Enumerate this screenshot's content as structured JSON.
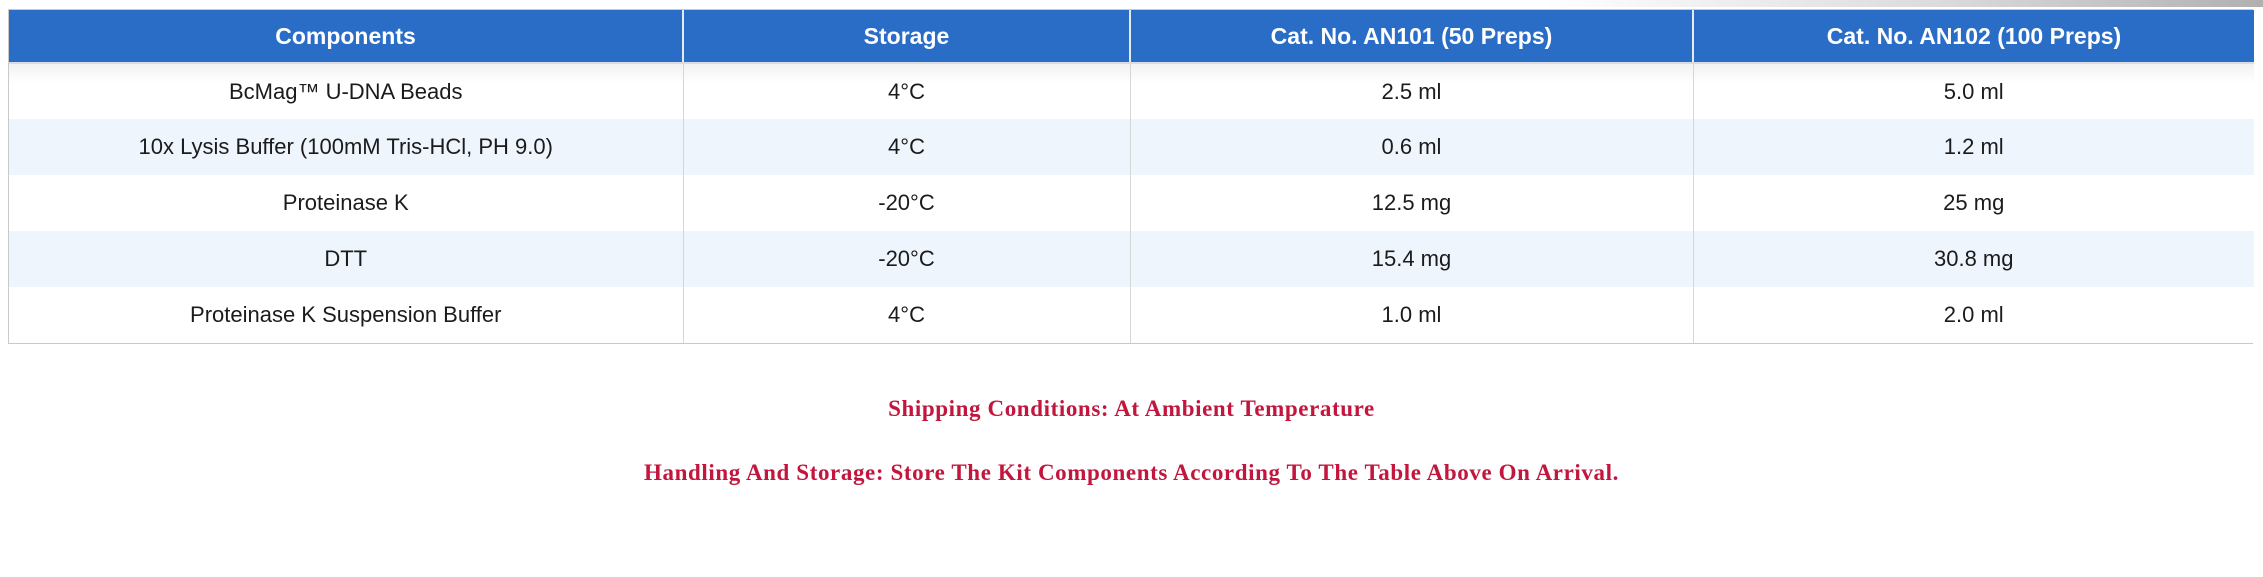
{
  "table": {
    "headers": [
      "Components",
      "Storage",
      "Cat. No. AN101 (50 Preps)",
      "Cat. No. AN102 (100 Preps)"
    ],
    "rows": [
      [
        "BcMag™ U-DNA Beads",
        "4°C",
        "2.5 ml",
        "5.0 ml"
      ],
      [
        "10x Lysis Buffer (100mM Tris-HCl, PH 9.0)",
        "4°C",
        "0.6 ml",
        "1.2 ml"
      ],
      [
        "Proteinase K",
        "-20°C",
        "12.5 mg",
        "25 mg"
      ],
      [
        "DTT",
        "-20°C",
        "15.4 mg",
        "30.8 mg"
      ],
      [
        "Proteinase K Suspension Buffer",
        "4°C",
        "1.0 ml",
        "2.0 ml"
      ]
    ]
  },
  "notes": {
    "shipping": "Shipping Conditions: At Ambient Temperature",
    "handling": "Handling And Storage: Store The Kit Components According To The Table Above On Arrival."
  },
  "colors": {
    "header_bg": "#2a6dc7",
    "row_alt": "#eff5fc",
    "note_text": "#c2163e",
    "border": "#c9c9c9"
  }
}
